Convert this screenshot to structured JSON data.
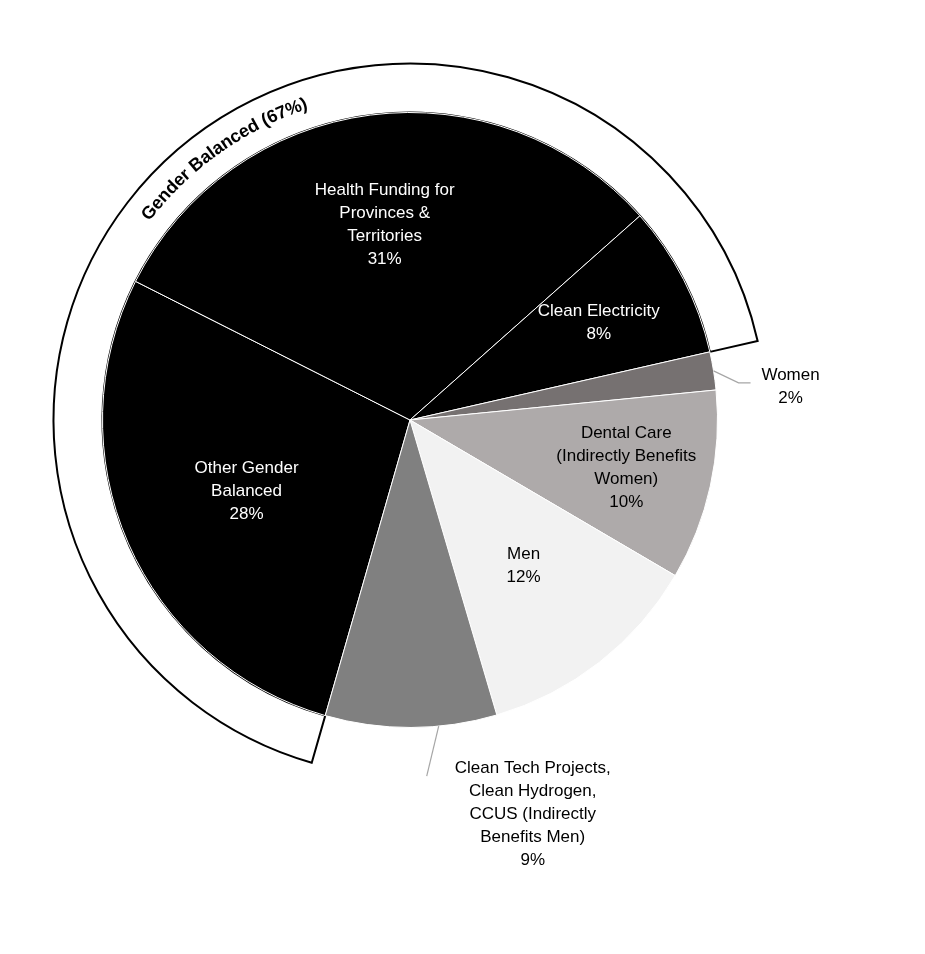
{
  "chart_data": {
    "type": "pie",
    "categories": [
      [
        "Other Gender",
        "Balanced"
      ],
      [
        "Health Funding for",
        "Provinces &",
        "Territories"
      ],
      [
        "Clean Electricity"
      ],
      [
        "Women"
      ],
      [
        "Dental Care",
        "(Indirectly Benefits",
        "Women)"
      ],
      [
        "Men"
      ],
      [
        "Clean Tech Projects,",
        "Clean Hydrogen,",
        "CCUS (Indirectly",
        "Benefits Men)"
      ]
    ],
    "values": [
      28,
      31,
      8,
      2,
      10,
      12,
      9
    ],
    "value_labels": [
      "28%",
      "31%",
      "8%",
      "2%",
      "10%",
      "12%",
      "9%"
    ],
    "colors": [
      "#000000",
      "#000000",
      "#000000",
      "#767171",
      "#aeaaaa",
      "#f2f2f2",
      "#808080"
    ],
    "data_labels": true,
    "annotations": [
      {
        "text": "Gender Balanced (67%)",
        "value": 67
      }
    ]
  }
}
